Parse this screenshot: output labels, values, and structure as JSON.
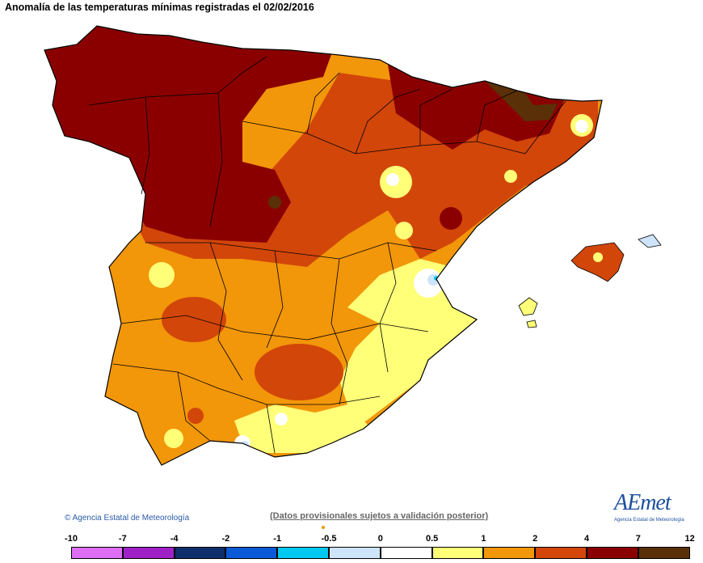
{
  "title": "Anomalía de las temperaturas mínimas registradas el 02/02/2016",
  "copyright": "Agencia Estatal de Meteorología",
  "notice": "(Datos provisionales sujetos a validación posterior)",
  "logo": {
    "word": "AEmet",
    "subtitle": "Agencia Estatal de Meteorología"
  },
  "legend": {
    "ticks": [
      "-10",
      "-7",
      "-4",
      "-2",
      "-1",
      "-0.5",
      "0",
      "0.5",
      "1",
      "2",
      "4",
      "7",
      "12"
    ],
    "colors": [
      "#dd6ef5",
      "#a020c8",
      "#0f2f6a",
      "#0a5ad8",
      "#00c8f0",
      "#cde4fb",
      "#ffffff",
      "#ffff78",
      "#f2960a",
      "#d2460a",
      "#8a0000",
      "#5a3008"
    ]
  },
  "palette": {
    "sea": "#ffffff",
    "border": "#000000",
    "pale_blue": "#cde4fb",
    "cyan": "#00c8f0",
    "pale_yellow": "#ffff78",
    "orange": "#f2960a",
    "red_orange": "#d2460a",
    "dark_red": "#8a0000",
    "brown": "#5a3008"
  }
}
